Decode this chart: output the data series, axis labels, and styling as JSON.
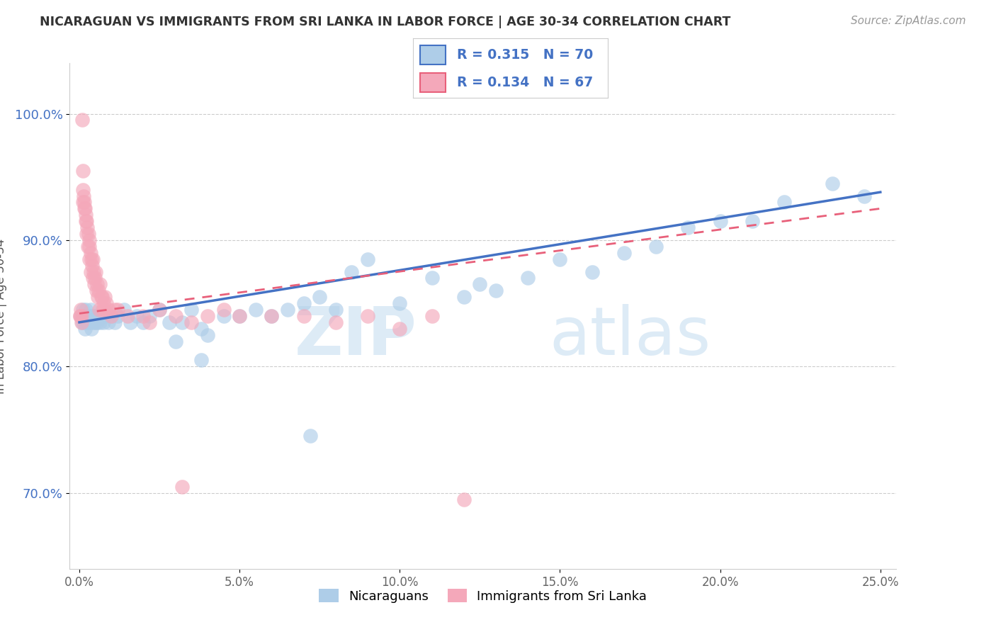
{
  "title": "NICARAGUAN VS IMMIGRANTS FROM SRI LANKA IN LABOR FORCE | AGE 30-34 CORRELATION CHART",
  "source": "Source: ZipAtlas.com",
  "xlabel_vals": [
    0.0,
    5.0,
    10.0,
    15.0,
    20.0,
    25.0
  ],
  "ylabel_vals": [
    70.0,
    80.0,
    90.0,
    100.0
  ],
  "xlim": [
    -0.3,
    25.5
  ],
  "ylim": [
    64.0,
    104.0
  ],
  "blue_R": 0.315,
  "blue_N": 70,
  "pink_R": 0.134,
  "pink_N": 67,
  "blue_color": "#aecde8",
  "pink_color": "#f4a8ba",
  "blue_line_color": "#4472c4",
  "pink_line_color": "#e8607a",
  "pink_dash_color": "#e8a0b0",
  "R_N_color": "#4472c4",
  "blue_line_y0": 83.5,
  "blue_line_y1": 93.8,
  "pink_line_y0": 84.2,
  "pink_line_y1": 92.5,
  "blue_x": [
    0.05,
    0.08,
    0.1,
    0.12,
    0.14,
    0.16,
    0.18,
    0.2,
    0.22,
    0.25,
    0.28,
    0.3,
    0.32,
    0.35,
    0.38,
    0.4,
    0.42,
    0.45,
    0.48,
    0.5,
    0.55,
    0.6,
    0.65,
    0.7,
    0.75,
    0.8,
    0.9,
    1.0,
    1.1,
    1.2,
    1.4,
    1.6,
    1.8,
    2.0,
    2.2,
    2.5,
    2.8,
    3.0,
    3.2,
    3.5,
    3.8,
    4.0,
    4.5,
    5.0,
    5.5,
    6.0,
    6.5,
    7.0,
    7.5,
    8.0,
    8.5,
    9.0,
    10.0,
    11.0,
    12.0,
    12.5,
    13.0,
    14.0,
    15.0,
    16.0,
    17.0,
    18.0,
    19.0,
    20.0,
    21.0,
    22.0,
    23.5,
    24.5,
    3.8,
    7.2
  ],
  "blue_y": [
    84.0,
    83.5,
    84.5,
    84.0,
    83.5,
    84.0,
    83.0,
    84.5,
    84.0,
    83.5,
    84.0,
    83.5,
    84.0,
    84.5,
    83.0,
    84.0,
    83.5,
    84.0,
    83.5,
    84.0,
    83.5,
    84.0,
    83.5,
    84.0,
    83.5,
    84.0,
    83.5,
    84.0,
    83.5,
    84.0,
    84.5,
    83.5,
    84.0,
    83.5,
    84.0,
    84.5,
    83.5,
    82.0,
    83.5,
    84.5,
    83.0,
    82.5,
    84.0,
    84.0,
    84.5,
    84.0,
    84.5,
    85.0,
    85.5,
    84.5,
    87.5,
    88.5,
    85.0,
    87.0,
    85.5,
    86.5,
    86.0,
    87.0,
    88.5,
    87.5,
    89.0,
    89.5,
    91.0,
    91.5,
    91.5,
    93.0,
    94.5,
    93.5,
    80.5,
    74.5
  ],
  "pink_x": [
    0.02,
    0.04,
    0.06,
    0.08,
    0.1,
    0.12,
    0.14,
    0.16,
    0.18,
    0.2,
    0.22,
    0.25,
    0.28,
    0.3,
    0.32,
    0.35,
    0.38,
    0.4,
    0.42,
    0.45,
    0.48,
    0.5,
    0.55,
    0.6,
    0.65,
    0.7,
    0.75,
    0.8,
    0.9,
    1.0,
    1.2,
    1.5,
    2.0,
    2.5,
    3.0,
    3.5,
    4.0,
    4.5,
    5.0,
    6.0,
    7.0,
    8.0,
    9.0,
    10.0,
    11.0,
    12.0,
    0.03,
    0.07,
    0.11,
    0.15,
    0.19,
    0.23,
    0.27,
    0.31,
    0.36,
    0.41,
    0.46,
    0.52,
    0.57,
    0.62,
    0.68,
    0.73,
    0.78,
    0.85,
    1.1,
    2.2,
    3.2
  ],
  "pink_y": [
    84.0,
    84.5,
    84.0,
    99.5,
    95.5,
    94.0,
    93.5,
    93.0,
    92.5,
    92.0,
    91.5,
    91.0,
    90.5,
    90.0,
    89.5,
    89.0,
    88.5,
    88.0,
    88.5,
    87.5,
    87.0,
    87.5,
    86.5,
    86.0,
    86.5,
    85.5,
    85.0,
    85.5,
    84.5,
    84.0,
    84.5,
    84.0,
    84.0,
    84.5,
    84.0,
    83.5,
    84.0,
    84.5,
    84.0,
    84.0,
    84.0,
    83.5,
    84.0,
    83.0,
    84.0,
    69.5,
    84.0,
    83.5,
    93.0,
    92.5,
    91.5,
    90.5,
    89.5,
    88.5,
    87.5,
    87.0,
    86.5,
    86.0,
    85.5,
    84.5,
    85.5,
    84.5,
    84.5,
    85.0,
    84.5,
    83.5,
    70.5
  ]
}
